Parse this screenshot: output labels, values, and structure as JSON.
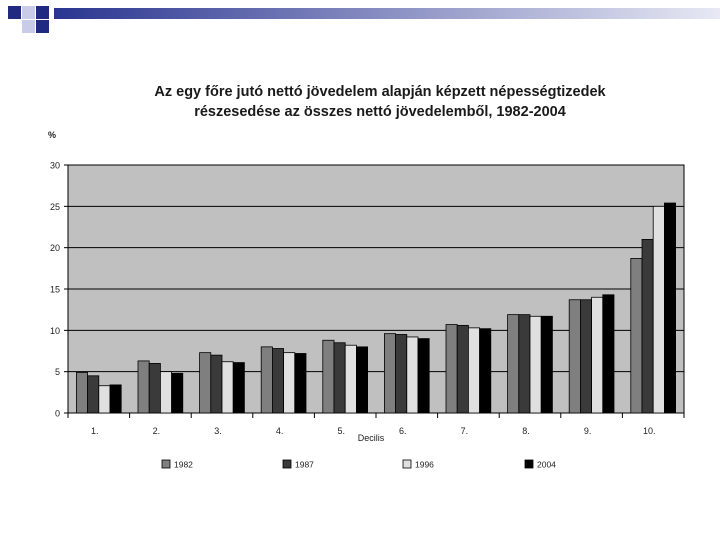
{
  "colors": {
    "plot_bg": "#c0c0c0",
    "s1982": "#7f7f7f",
    "s1987": "#3a3a3a",
    "s1996": "#e0e0e0",
    "s2004": "#000000",
    "deco_navy": "#1f2a80",
    "deco_light": "#c9cce6"
  },
  "chart_data": {
    "type": "bar",
    "title_lines": [
      "Az egy főre jutó nettó jövedelem  alapján képzett népességtizedek",
      "részesedése az összes nettó jövedelemből, 1982-2004"
    ],
    "y_unit": "%",
    "xlabel": "Decilis",
    "ylim": [
      0,
      30
    ],
    "yticks": [
      "0",
      "5",
      "10",
      "15",
      "20",
      "25",
      "30"
    ],
    "categories": [
      "1.",
      "2.",
      "3.",
      "4.",
      "5.",
      "6.",
      "7.",
      "8.",
      "9.",
      "10."
    ],
    "series": [
      {
        "name": "1982",
        "values": [
          4.9,
          6.3,
          7.3,
          8.0,
          8.8,
          9.6,
          10.7,
          11.9,
          13.7,
          18.7
        ]
      },
      {
        "name": "1987",
        "values": [
          4.5,
          6.0,
          7.0,
          7.8,
          8.5,
          9.5,
          10.6,
          11.9,
          13.7,
          21.0
        ]
      },
      {
        "name": "1996",
        "values": [
          3.3,
          5.0,
          6.2,
          7.3,
          8.2,
          9.2,
          10.3,
          11.7,
          14.0,
          25.0
        ]
      },
      {
        "name": "2004",
        "values": [
          3.4,
          4.8,
          6.1,
          7.2,
          8.0,
          9.0,
          10.2,
          11.7,
          14.3,
          25.4
        ]
      }
    ],
    "grid": true,
    "legend": "bottom"
  }
}
